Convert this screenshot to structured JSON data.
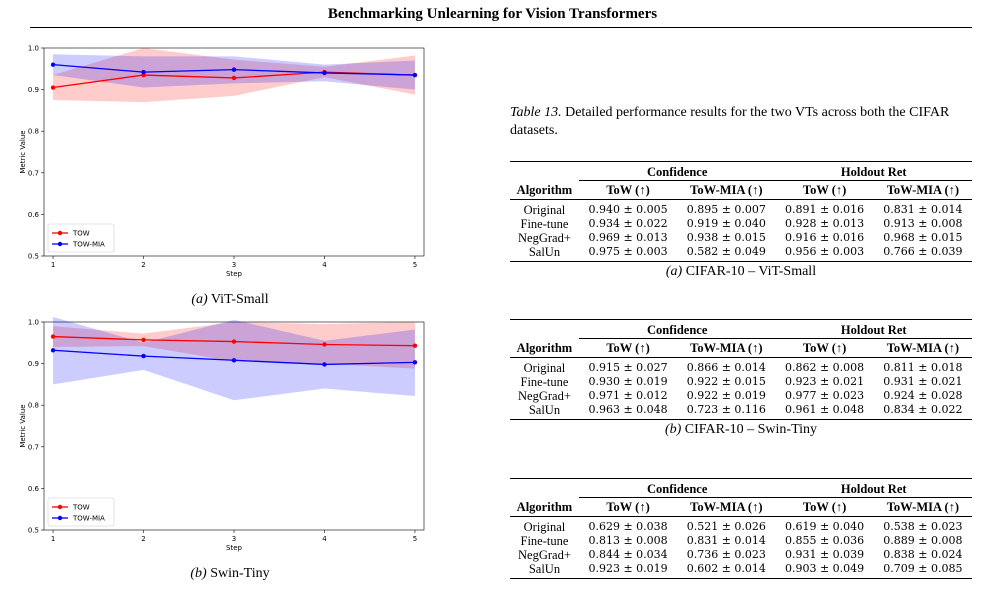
{
  "header": {
    "title": "Benchmarking Unlearning for Vision Transformers"
  },
  "figures": [
    {
      "caption_label": "(a)",
      "caption_text": "ViT-Small"
    },
    {
      "caption_label": "(b)",
      "caption_text": "Swin-Tiny"
    }
  ],
  "chart_data": [
    {
      "type": "line",
      "xlabel": "Step",
      "ylabel": "Metric Value",
      "x": [
        1,
        2,
        3,
        4,
        5
      ],
      "xlim": [
        0.9,
        5.1
      ],
      "ylim": [
        0.5,
        1.0
      ],
      "xticks": [
        "1",
        "2",
        "3",
        "4",
        "5"
      ],
      "yticks": [
        "0.5",
        "0.6",
        "0.7",
        "0.8",
        "0.9",
        "1.0"
      ],
      "legend": "lower-left",
      "grid": false,
      "series": [
        {
          "name": "TOW",
          "color": "#ff0000",
          "values": [
            0.905,
            0.935,
            0.928,
            0.942,
            0.935
          ],
          "lower": [
            0.875,
            0.87,
            0.885,
            0.93,
            0.888
          ],
          "upper": [
            0.935,
            1.0,
            0.972,
            0.955,
            0.982
          ]
        },
        {
          "name": "TOW-MIA",
          "color": "#0000ff",
          "values": [
            0.96,
            0.942,
            0.948,
            0.94,
            0.935
          ],
          "lower": [
            0.935,
            0.905,
            0.915,
            0.92,
            0.9
          ],
          "upper": [
            0.985,
            0.98,
            0.98,
            0.96,
            0.97
          ]
        }
      ]
    },
    {
      "type": "line",
      "xlabel": "Step",
      "ylabel": "Metric Value",
      "x": [
        1,
        2,
        3,
        4,
        5
      ],
      "xlim": [
        0.9,
        5.1
      ],
      "ylim": [
        0.5,
        1.0
      ],
      "xticks": [
        "1",
        "2",
        "3",
        "4",
        "5"
      ],
      "yticks": [
        "0.5",
        "0.6",
        "0.7",
        "0.8",
        "0.9",
        "1.0"
      ],
      "legend": "lower-left",
      "grid": false,
      "series": [
        {
          "name": "TOW",
          "color": "#ff0000",
          "values": [
            0.965,
            0.957,
            0.953,
            0.946,
            0.943
          ],
          "lower": [
            0.94,
            0.942,
            0.905,
            0.9,
            0.888
          ],
          "upper": [
            0.99,
            0.972,
            1.0,
            0.995,
            1.0
          ]
        },
        {
          "name": "TOW-MIA",
          "color": "#0000ff",
          "values": [
            0.932,
            0.918,
            0.908,
            0.898,
            0.903
          ],
          "lower": [
            0.85,
            0.885,
            0.812,
            0.84,
            0.822
          ],
          "upper": [
            1.012,
            0.95,
            1.005,
            0.955,
            0.982
          ]
        }
      ]
    }
  ],
  "table_caption": {
    "label": "Table 13.",
    "text": "Detailed performance results for the two VTs across both the CIFAR datasets."
  },
  "tables": [
    {
      "group_headers": [
        "Confidence",
        "Holdout Ret"
      ],
      "col_headers": [
        "Algorithm",
        "ToW (↑)",
        "ToW-MIA (↑)",
        "ToW (↑)",
        "ToW-MIA (↑)"
      ],
      "rows": [
        [
          "Original",
          "0.940 ± 0.005",
          "0.895 ± 0.007",
          "0.891 ± 0.016",
          "0.831 ± 0.014"
        ],
        [
          "Fine-tune",
          "0.934 ± 0.022",
          "0.919 ± 0.040",
          "0.928 ± 0.013",
          "0.913 ± 0.008"
        ],
        [
          "NegGrad+",
          "0.969 ± 0.013",
          "0.938 ± 0.015",
          "0.916 ± 0.016",
          "0.968 ± 0.015"
        ],
        [
          "SalUn",
          "0.975 ± 0.003",
          "0.582 ± 0.049",
          "0.956 ± 0.003",
          "0.766 ± 0.039"
        ]
      ],
      "caption_label": "(a)",
      "caption_text": "CIFAR-10 – ViT-Small"
    },
    {
      "group_headers": [
        "Confidence",
        "Holdout Ret"
      ],
      "col_headers": [
        "Algorithm",
        "ToW (↑)",
        "ToW-MIA (↑)",
        "ToW (↑)",
        "ToW-MIA (↑)"
      ],
      "rows": [
        [
          "Original",
          "0.915 ± 0.027",
          "0.866 ± 0.014",
          "0.862 ± 0.008",
          "0.811 ± 0.018"
        ],
        [
          "Fine-tune",
          "0.930 ± 0.019",
          "0.922 ± 0.015",
          "0.923 ± 0.021",
          "0.931 ± 0.021"
        ],
        [
          "NegGrad+",
          "0.971 ± 0.012",
          "0.922 ± 0.019",
          "0.977 ± 0.023",
          "0.924 ± 0.028"
        ],
        [
          "SalUn",
          "0.963 ± 0.048",
          "0.723 ± 0.116",
          "0.961 ± 0.048",
          "0.834 ± 0.022"
        ]
      ],
      "caption_label": "(b)",
      "caption_text": "CIFAR-10 – Swin-Tiny"
    },
    {
      "group_headers": [
        "Confidence",
        "Holdout Ret"
      ],
      "col_headers": [
        "Algorithm",
        "ToW (↑)",
        "ToW-MIA (↑)",
        "ToW (↑)",
        "ToW-MIA (↑)"
      ],
      "rows": [
        [
          "Original",
          "0.629 ± 0.038",
          "0.521 ± 0.026",
          "0.619 ± 0.040",
          "0.538 ± 0.023"
        ],
        [
          "Fine-tune",
          "0.813 ± 0.008",
          "0.831 ± 0.014",
          "0.855 ± 0.036",
          "0.889 ± 0.008"
        ],
        [
          "NegGrad+",
          "0.844 ± 0.034",
          "0.736 ± 0.023",
          "0.931 ± 0.039",
          "0.838 ± 0.024"
        ],
        [
          "SalUn",
          "0.923 ± 0.019",
          "0.602 ± 0.014",
          "0.903 ± 0.049",
          "0.709 ± 0.085"
        ]
      ]
    }
  ]
}
